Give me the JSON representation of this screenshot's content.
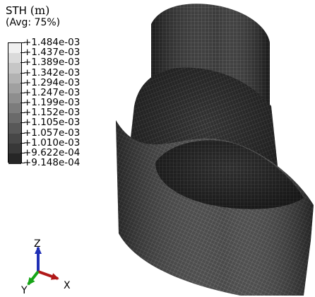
{
  "legend": {
    "variable": "STH",
    "unit": "(m)",
    "averaging": "(Avg: 75%)",
    "values": [
      "+1.484e-03",
      "+1.437e-03",
      "+1.389e-03",
      "+1.342e-03",
      "+1.294e-03",
      "+1.247e-03",
      "+1.199e-03",
      "+1.152e-03",
      "+1.105e-03",
      "+1.057e-03",
      "+1.010e-03",
      "+9.622e-04",
      "+9.148e-04"
    ],
    "swatch_colors": [
      "#f0f0f0",
      "#dadada",
      "#c6c6c6",
      "#b2b2b2",
      "#a0a0a0",
      "#8e8e8e",
      "#7c7c7c",
      "#6a6a6a",
      "#585858",
      "#474747",
      "#383838",
      "#262626"
    ]
  },
  "triad": {
    "z_label": "Z",
    "x_label": "X",
    "y_label": "Y",
    "z_color": "#1f2fb5",
    "x_color": "#b01818",
    "y_color": "#17a517"
  },
  "model": {
    "mesh_color": "#2c2c2c",
    "line_color": "#777777"
  }
}
